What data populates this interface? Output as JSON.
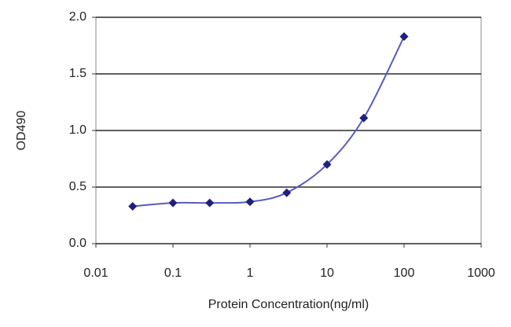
{
  "chart_data": {
    "type": "scatter",
    "x_label": "Protein Concentration(ng/ml)",
    "y_label": "OD490",
    "x": [
      0.03,
      0.1,
      0.3,
      1,
      3,
      10,
      30,
      100
    ],
    "series": [
      {
        "color": "#1f1f80",
        "values": [
          0.33,
          0.36,
          0.36,
          0.37,
          0.45,
          0.7,
          1.11,
          1.83
        ]
      }
    ],
    "line_color": "#5a5ac0",
    "xlim": [
      0.01,
      1000
    ],
    "xticks": [
      0.01,
      0.1,
      1,
      10,
      100,
      1000
    ],
    "xscale": "log",
    "ylim": [
      0,
      2
    ],
    "yticks": [
      {
        "value": 0,
        "label": "0.0"
      },
      0.5,
      {
        "value": 1,
        "label": "1.0"
      },
      1.5,
      {
        "value": 2,
        "label": "2.0"
      }
    ],
    "grid": true
  }
}
